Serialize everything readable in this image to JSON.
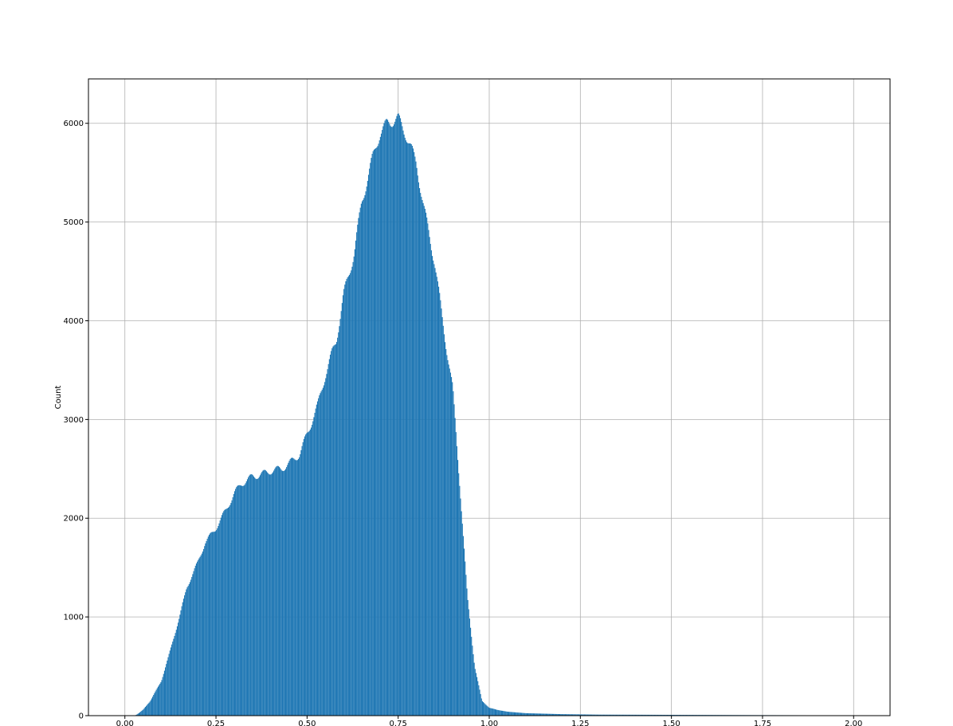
{
  "chart_data": {
    "type": "bar",
    "title": "",
    "xlabel": "",
    "ylabel": "Count",
    "xlim": [
      -0.1,
      2.1
    ],
    "ylim": [
      0,
      6450
    ],
    "grid": true,
    "bar_color": "#1f77b4",
    "grid_color": "#b0b0b0",
    "xticks": [
      0.0,
      0.25,
      0.5,
      0.75,
      1.0,
      1.25,
      1.5,
      1.75,
      2.0
    ],
    "xtick_labels": [
      "0.00",
      "0.25",
      "0.50",
      "0.75",
      "1.00",
      "1.25",
      "1.50",
      "1.75",
      "2.00"
    ],
    "yticks": [
      0,
      1000,
      2000,
      3000,
      4000,
      5000,
      6000
    ],
    "ytick_labels": [
      "0",
      "1000",
      "2000",
      "3000",
      "4000",
      "5000",
      "6000"
    ],
    "series": [
      {
        "x": [
          0.0,
          0.02,
          0.03,
          0.04,
          0.05,
          0.07,
          0.1,
          0.12,
          0.15,
          0.17,
          0.2,
          0.22,
          0.25,
          0.28,
          0.3,
          0.32,
          0.35,
          0.38,
          0.4,
          0.43,
          0.45,
          0.48,
          0.5,
          0.53,
          0.55,
          0.58,
          0.6,
          0.63,
          0.65,
          0.68,
          0.7,
          0.72,
          0.75,
          0.77,
          0.8,
          0.82,
          0.85,
          0.87,
          0.9,
          0.92,
          0.94,
          0.96,
          0.98,
          1.0,
          1.02,
          1.05,
          1.1,
          1.2,
          1.3,
          1.5,
          1.75,
          2.0
        ],
        "y": [
          0,
          0,
          5,
          30,
          60,
          150,
          350,
          600,
          1000,
          1300,
          1550,
          1750,
          1900,
          2100,
          2250,
          2350,
          2420,
          2450,
          2480,
          2500,
          2550,
          2650,
          2850,
          3150,
          3450,
          3800,
          4250,
          4700,
          5200,
          5650,
          5900,
          6000,
          6050,
          5900,
          5600,
          5150,
          4600,
          4050,
          3300,
          2300,
          1200,
          500,
          150,
          80,
          60,
          40,
          25,
          15,
          10,
          8,
          5,
          3
        ]
      }
    ]
  }
}
